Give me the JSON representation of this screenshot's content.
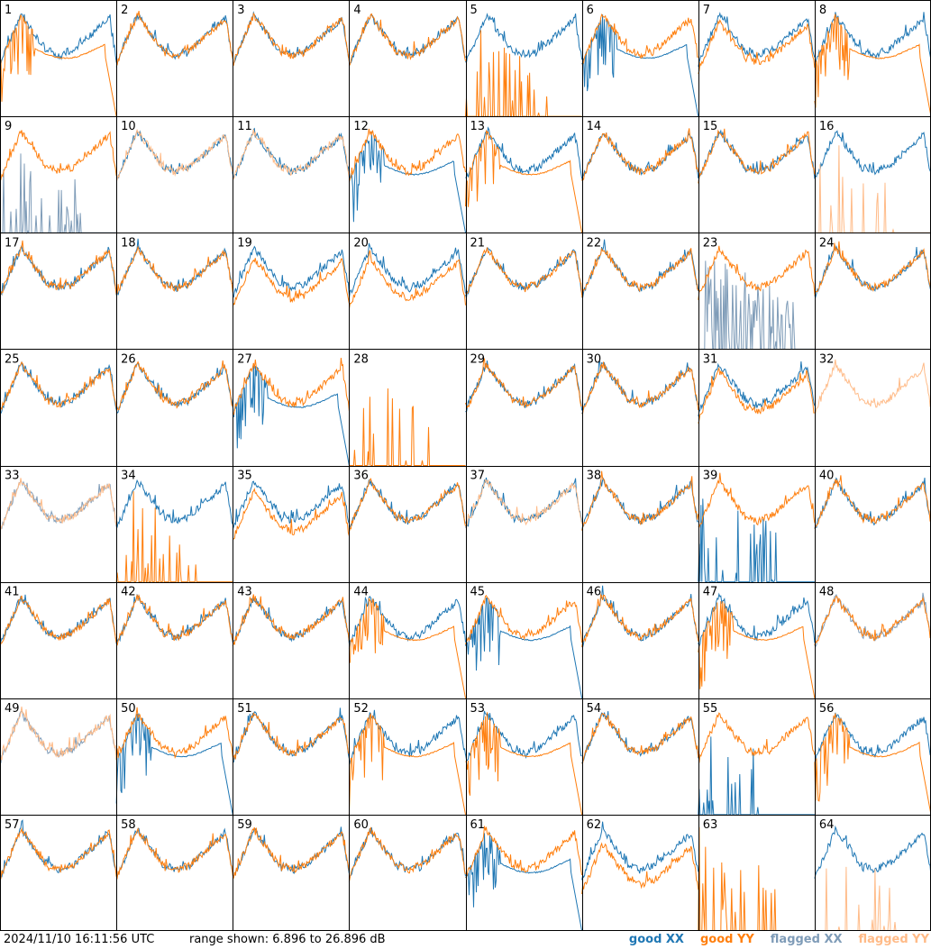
{
  "chart_data": {
    "type": "line",
    "grid": {
      "rows": 8,
      "cols": 8
    },
    "panels": [
      "1",
      "2",
      "3",
      "4",
      "5",
      "6",
      "7",
      "8",
      "9",
      "10",
      "11",
      "12",
      "13",
      "14",
      "15",
      "16",
      "17",
      "18",
      "19",
      "20",
      "21",
      "22",
      "23",
      "24",
      "25",
      "26",
      "27",
      "28",
      "29",
      "30",
      "31",
      "32",
      "33",
      "34",
      "35",
      "36",
      "37",
      "38",
      "39",
      "40",
      "41",
      "42",
      "43",
      "44",
      "45",
      "46",
      "47",
      "48",
      "49",
      "50",
      "51",
      "52",
      "53",
      "54",
      "55",
      "56",
      "57",
      "58",
      "59",
      "60",
      "61",
      "62",
      "63",
      "64"
    ],
    "timestamp": "2024/11/10 16:11:56 UTC",
    "range_text": "range shown: 6.896 to 26.896 dB",
    "ylim": [
      6.896,
      26.896
    ],
    "legend": [
      {
        "label": "good XX",
        "color": "#1f77b4"
      },
      {
        "label": "good YY",
        "color": "#ff7f0e"
      },
      {
        "label": "flagged XX",
        "color": "#7f9cb8"
      },
      {
        "label": "flagged YY",
        "color": "#ffbb88"
      }
    ],
    "colors": {
      "good_xx": "#1f77b4",
      "good_yy": "#ff7f0e",
      "flagged_xx": "#7f9cb8",
      "flagged_yy": "#ffbb88"
    },
    "panel_styles": {
      "1": {
        "xx": "good",
        "yy": "fall"
      },
      "2": {},
      "3": {},
      "4": {},
      "5": {
        "xx": "good",
        "yy": "spikes"
      },
      "6": {
        "xx": "fall",
        "yy": "good"
      },
      "7": {
        "sep": 2
      },
      "8": {
        "xx": "good",
        "yy": "fall"
      },
      "9": {
        "xx": "fspikes",
        "yy": "good"
      },
      "10": {
        "xx": "good",
        "yy": "flag"
      },
      "11": {
        "xx": "good",
        "yy": "flag"
      },
      "12": {
        "xx": "fall",
        "yy": "good"
      },
      "13": {
        "xx": "good",
        "yy": "fall"
      },
      "14": {},
      "15": {},
      "16": {
        "xx": "good",
        "yy": "fspikes"
      },
      "17": {},
      "18": {},
      "19": {
        "sep": 3
      },
      "20": {
        "sep": 3
      },
      "21": {},
      "22": {},
      "23": {
        "xx": "fspikes_dense",
        "yy": "good"
      },
      "24": {},
      "25": {},
      "26": {},
      "27": {
        "xx": "fall",
        "yy": "good"
      },
      "28": {
        "xx": "none",
        "yy": "spikes"
      },
      "29": {},
      "30": {},
      "31": {
        "sep": 2
      },
      "32": {
        "xx": "none",
        "yy": "flag"
      },
      "33": {
        "xx": "flag",
        "yy": "flag"
      },
      "34": {
        "xx": "good",
        "yy": "spikes"
      },
      "35": {
        "sep": 3
      },
      "36": {},
      "37": {
        "xx": "good",
        "yy": "flag"
      },
      "38": {},
      "39": {
        "xx": "spikes",
        "yy": "good"
      },
      "40": {},
      "41": {},
      "42": {},
      "43": {},
      "44": {
        "xx": "good",
        "yy": "fall"
      },
      "45": {
        "xx": "fall",
        "yy": "good"
      },
      "46": {},
      "47": {
        "xx": "good",
        "yy": "fall"
      },
      "48": {
        "xx": "flag",
        "yy": "good"
      },
      "49": {
        "xx": "flag",
        "yy": "flag"
      },
      "50": {
        "xx": "fall",
        "yy": "good"
      },
      "51": {},
      "52": {
        "xx": "good",
        "yy": "fall"
      },
      "53": {
        "xx": "good",
        "yy": "fall"
      },
      "54": {},
      "55": {
        "xx": "spikes",
        "yy": "good"
      },
      "56": {
        "xx": "good",
        "yy": "fall"
      },
      "57": {},
      "58": {},
      "59": {},
      "60": {},
      "61": {
        "xx": "fall",
        "yy": "good"
      },
      "62": {
        "sep": 4
      },
      "63": {
        "xx": "none",
        "yy": "spikes"
      },
      "64": {
        "xx": "good",
        "yy": "fspikes"
      }
    }
  }
}
